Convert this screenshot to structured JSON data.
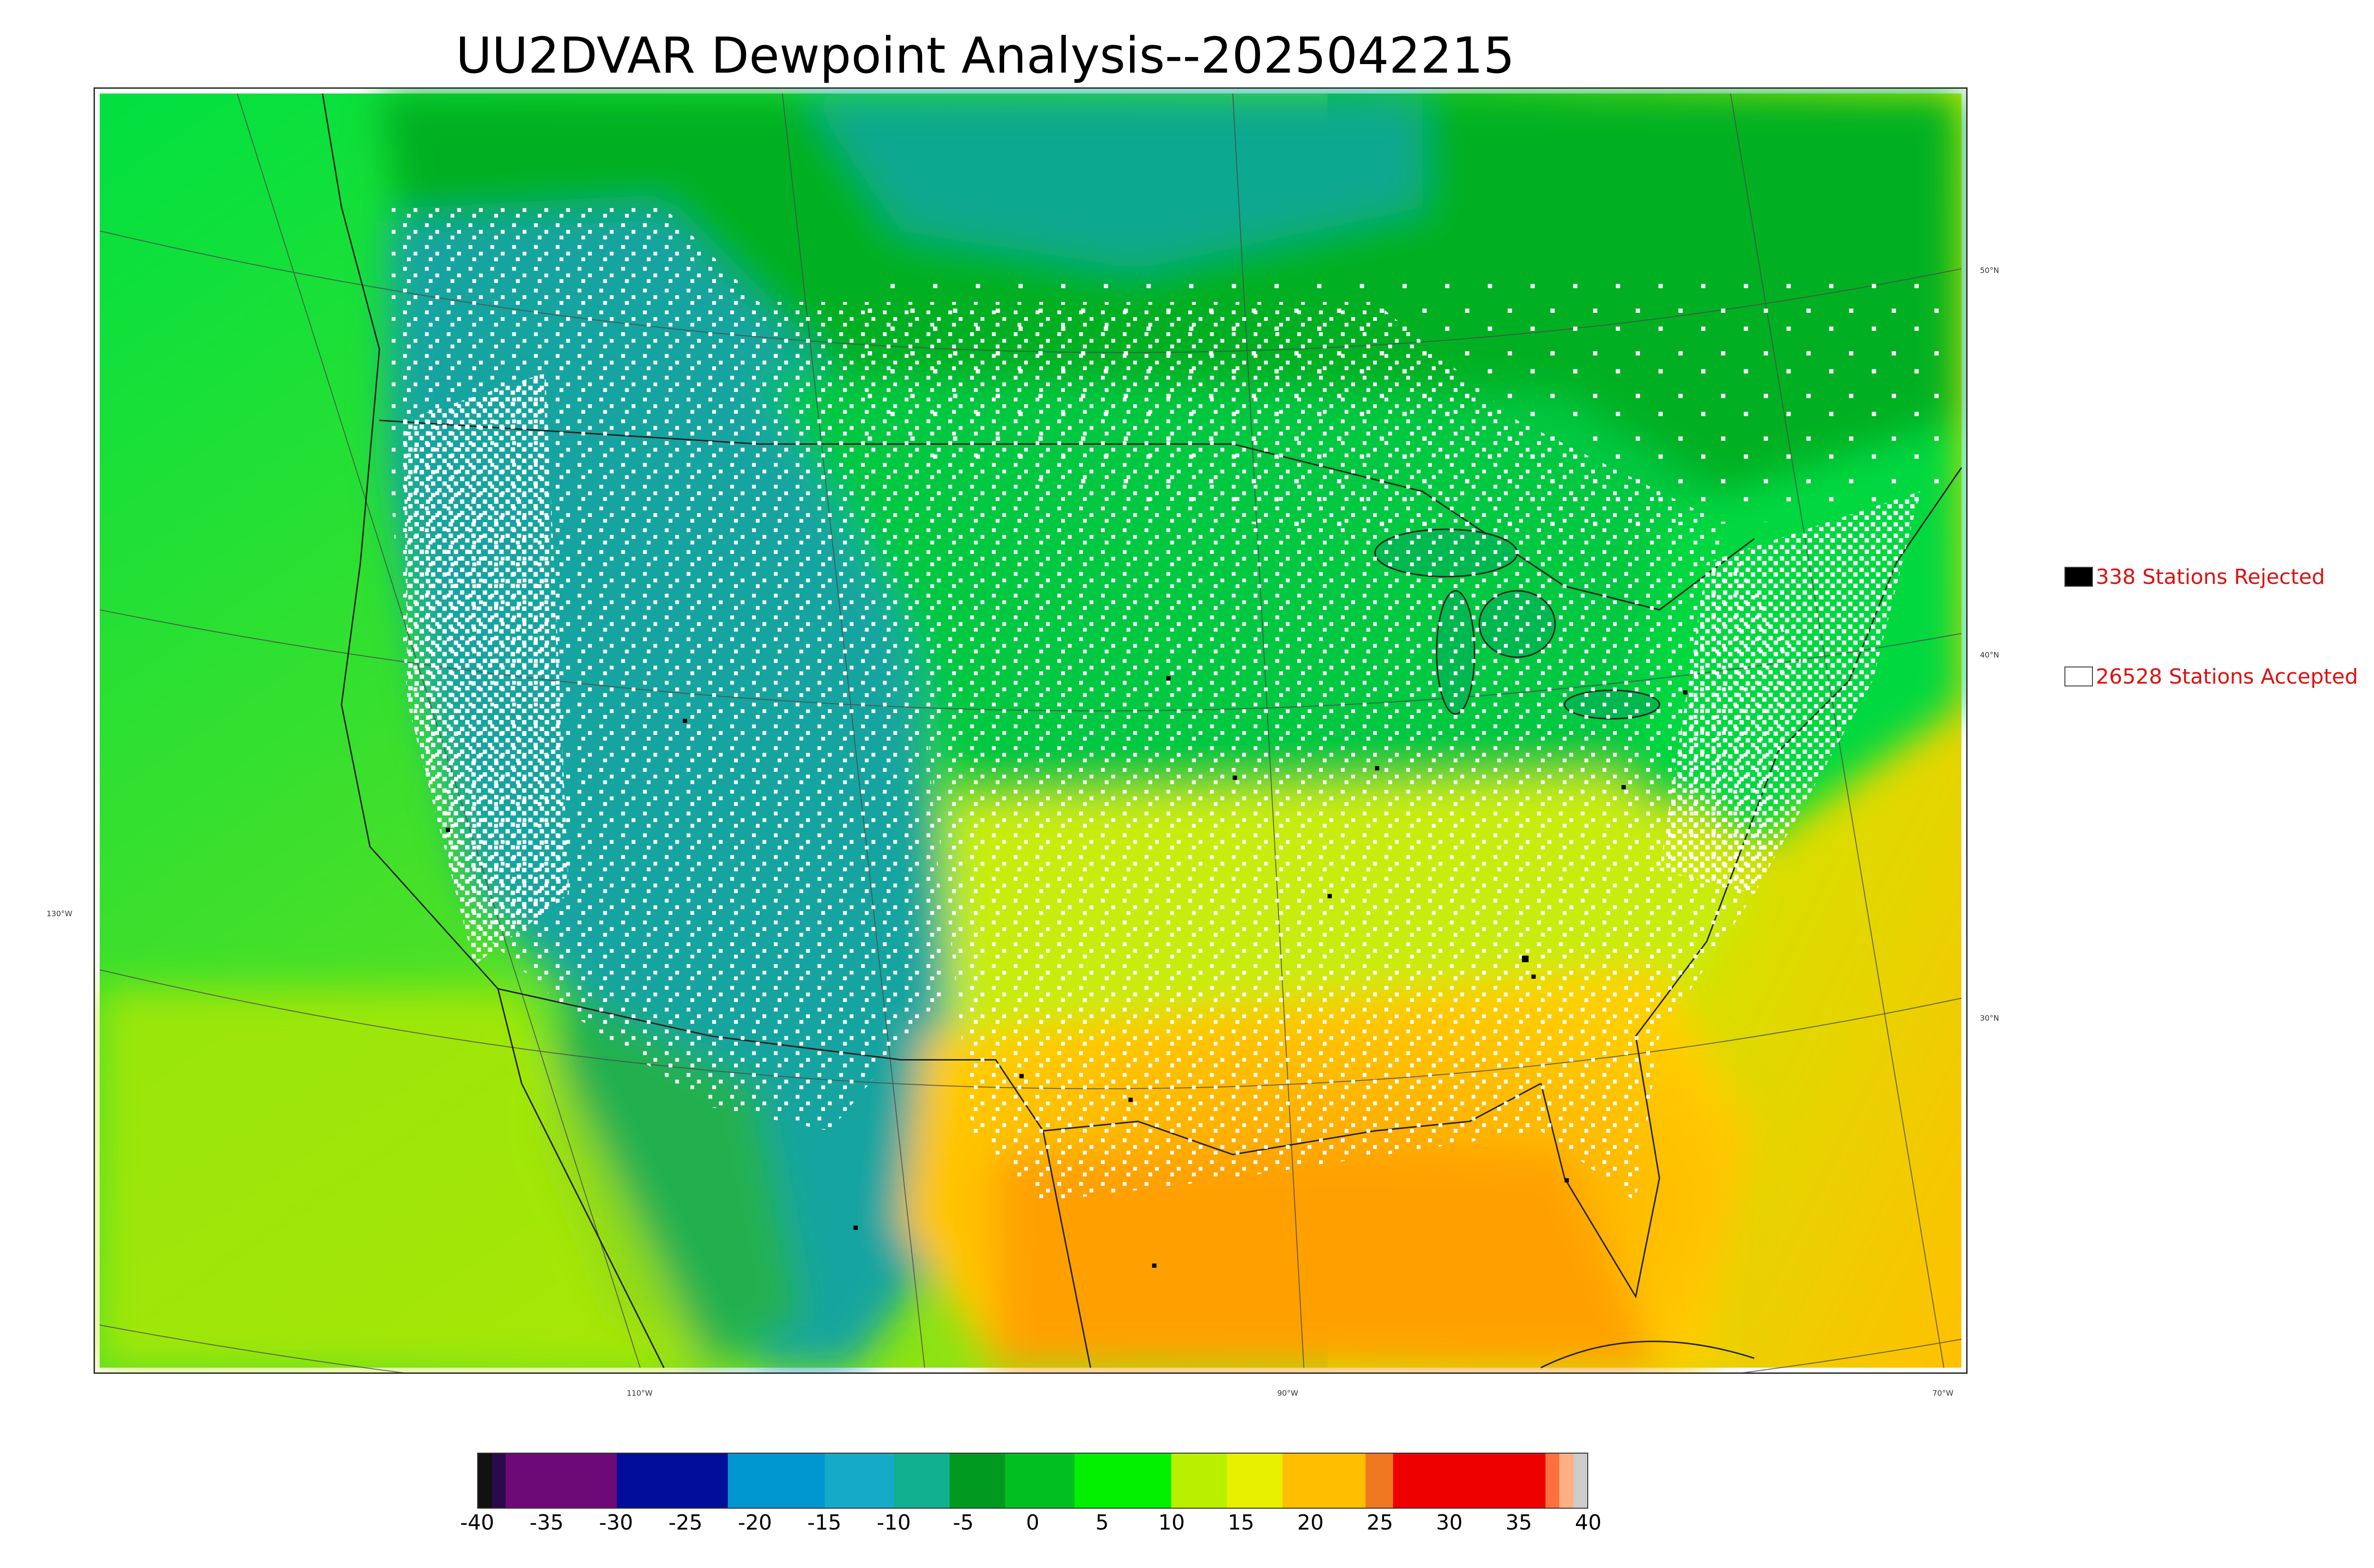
{
  "title": "UU2DVAR Dewpoint Analysis--2025042215",
  "legend": {
    "rejected": {
      "label": "338 Stations Rejected",
      "color": "#000000"
    },
    "accepted": {
      "label": "26528 Stations Accepted",
      "color": "#ffffff"
    }
  },
  "lat_labels": [
    "50°N",
    "40°N",
    "30°N"
  ],
  "lon_labels": [
    "130°W",
    "110°W",
    "90°W",
    "70°W"
  ],
  "colorbar": {
    "ticks": [
      "-40",
      "-35",
      "-30",
      "-25",
      "-20",
      "-15",
      "-10",
      "-5",
      "0",
      "5",
      "10",
      "15",
      "20",
      "25",
      "30",
      "35",
      "40"
    ],
    "segments": [
      {
        "from": -40,
        "to": -39,
        "color": "#111111"
      },
      {
        "from": -39,
        "to": -38,
        "color": "#2a0a4a"
      },
      {
        "from": -38,
        "to": -30,
        "color": "#6e0a78"
      },
      {
        "from": -30,
        "to": -22,
        "color": "#000e9a"
      },
      {
        "from": -22,
        "to": -15,
        "color": "#0096d0"
      },
      {
        "from": -15,
        "to": -10,
        "color": "#14aac8"
      },
      {
        "from": -10,
        "to": -6,
        "color": "#10b090"
      },
      {
        "from": -6,
        "to": -2,
        "color": "#009a20"
      },
      {
        "from": -2,
        "to": 3,
        "color": "#00c020"
      },
      {
        "from": 3,
        "to": 10,
        "color": "#00f000"
      },
      {
        "from": 10,
        "to": 14,
        "color": "#b8f000"
      },
      {
        "from": 14,
        "to": 18,
        "color": "#e8f000"
      },
      {
        "from": 18,
        "to": 24,
        "color": "#ffbf00"
      },
      {
        "from": 24,
        "to": 26,
        "color": "#f07820"
      },
      {
        "from": 26,
        "to": 37,
        "color": "#ee0000"
      },
      {
        "from": 37,
        "to": 38,
        "color": "#ff7040"
      },
      {
        "from": 38,
        "to": 39,
        "color": "#ffb080"
      },
      {
        "from": 39,
        "to": 40,
        "color": "#cccccc"
      }
    ]
  },
  "map_colors": {
    "ocean_west": "#00e040",
    "ocean_south": "#ffc000",
    "canada": "#00b820",
    "west_dry": "#1aa8a0",
    "plains": "#00c83a",
    "south": "#ffb800",
    "gulf": "#ffa000",
    "station_accepted": "#ffffff",
    "station_rejected": "#000000"
  }
}
